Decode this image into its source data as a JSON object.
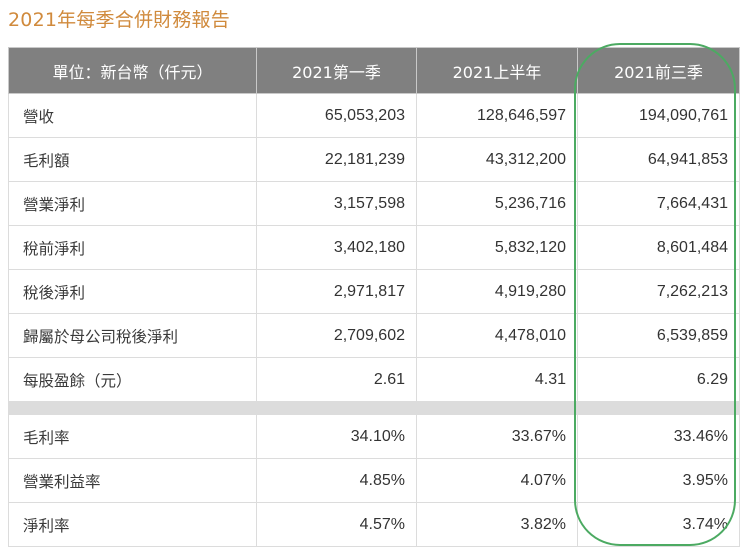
{
  "title": "2021年每季合併財務報告",
  "table": {
    "headers": [
      "單位：新台幣（仟元）",
      "2021第一季",
      "2021上半年",
      "2021前三季"
    ],
    "rows": [
      {
        "label": "營收",
        "values": [
          "65,053,203",
          "128,646,597",
          "194,090,761"
        ]
      },
      {
        "label": "毛利額",
        "values": [
          "22,181,239",
          "43,312,200",
          "64,941,853"
        ]
      },
      {
        "label": "營業淨利",
        "values": [
          "3,157,598",
          "5,236,716",
          "7,664,431"
        ]
      },
      {
        "label": "稅前淨利",
        "values": [
          "3,402,180",
          "5,832,120",
          "8,601,484"
        ]
      },
      {
        "label": "稅後淨利",
        "values": [
          "2,971,817",
          "4,919,280",
          "7,262,213"
        ]
      },
      {
        "label": "歸屬於母公司稅後淨利",
        "values": [
          "2,709,602",
          "4,478,010",
          "6,539,859"
        ]
      },
      {
        "label": "每股盈餘（元）",
        "values": [
          "2.61",
          "4.31",
          "6.29"
        ]
      }
    ],
    "ratio_rows": [
      {
        "label": "毛利率",
        "values": [
          "34.10%",
          "33.67%",
          "33.46%"
        ]
      },
      {
        "label": "營業利益率",
        "values": [
          "4.85%",
          "4.07%",
          "3.95%"
        ]
      },
      {
        "label": "淨利率",
        "values": [
          "4.57%",
          "3.82%",
          "3.74%"
        ]
      }
    ]
  },
  "annotation": {
    "highlighted_column": "2021前三季",
    "color": "#4caa62"
  },
  "colors": {
    "title": "#d08a3c",
    "header_bg": "#808080",
    "separator": "#dcdcdc"
  }
}
